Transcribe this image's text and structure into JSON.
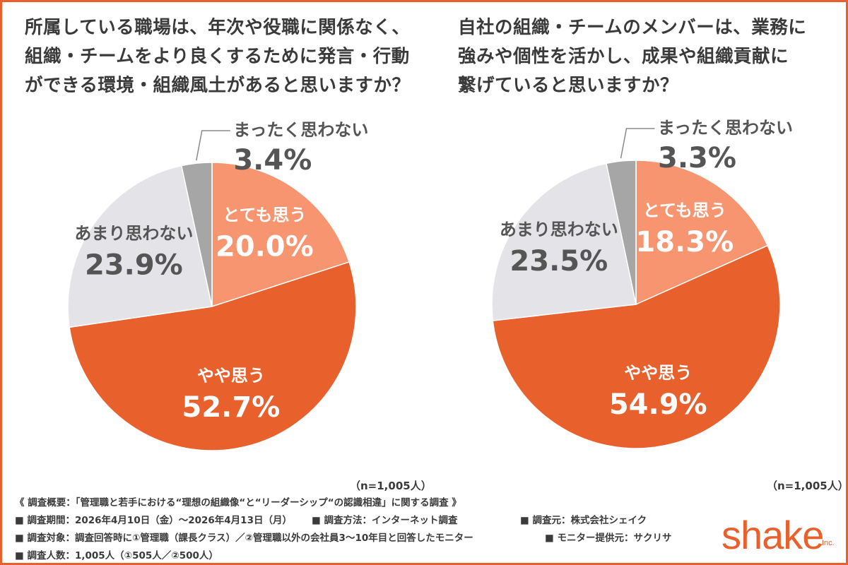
{
  "questions": {
    "left": "所属している職場は、年次や役職に関係なく、\n組織・チームをより良くするために発言・行動\nができる環境・組織風土があると思いますか？",
    "right": "自社の組織・チームのメンバーは、業務に\n強みや個性を活かし、成果や組織貢献に\n繋げていると思いますか？"
  },
  "chart_data": [
    {
      "type": "pie",
      "title": "所属している職場は、年次や役職に関係なく、組織・チームをより良くするために発言・行動ができる環境・組織風土があると思いますか？",
      "slices": [
        {
          "label": "とても思う",
          "value": 20.0,
          "display": "20.0%",
          "color": "#f79570"
        },
        {
          "label": "やや思う",
          "value": 52.7,
          "display": "52.7%",
          "color": "#e8612c"
        },
        {
          "label": "あまり思わない",
          "value": 23.9,
          "display": "23.9%",
          "color": "#e3e3e8"
        },
        {
          "label": "まったく思わない",
          "value": 3.4,
          "display": "3.4%",
          "color": "#a6a6a6"
        }
      ],
      "n_label": "（n=1,005人）"
    },
    {
      "type": "pie",
      "title": "自社の組織・チームのメンバーは、業務に強みや個性を活かし、成果や組織貢献に繋げていると思いますか？",
      "slices": [
        {
          "label": "とても思う",
          "value": 18.3,
          "display": "18.3%",
          "color": "#f79570"
        },
        {
          "label": "やや思う",
          "value": 54.9,
          "display": "54.9%",
          "color": "#e8612c"
        },
        {
          "label": "あまり思わない",
          "value": 23.5,
          "display": "23.5%",
          "color": "#e3e3e8"
        },
        {
          "label": "まったく思わない",
          "value": 3.3,
          "display": "3.3%",
          "color": "#a6a6a6"
        }
      ],
      "n_label": "（n=1,005人）"
    }
  ],
  "notes": {
    "heading": "《 調査概要：「管理職と若手における“理想の組織像“と“リーダーシップ“の認識相違」に関する調査 》",
    "period": "■ 調査期間：2026年4月10日（金）〜2026年4月13日（月）",
    "method": "■ 調査方法：インターネット調査",
    "source": "■ 調査元：株式会社シェイク",
    "target": "■ 調査対象：調査回答時に①管理職（課長クラス）／②管理職以外の会社員3〜10年目と回答したモニター",
    "provider": "■ モニター提供元：サクリサ",
    "count": "■ 調査人数：1,005人（①505人／②500人）"
  },
  "logo": {
    "text": "shake",
    "suffix": "Inc."
  },
  "colors": {
    "accent": "#e8612c",
    "border": "#e8612c",
    "text": "#3a3a3a"
  }
}
